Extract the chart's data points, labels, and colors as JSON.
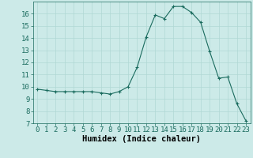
{
  "x": [
    0,
    1,
    2,
    3,
    4,
    5,
    6,
    7,
    8,
    9,
    10,
    11,
    12,
    13,
    14,
    15,
    16,
    17,
    18,
    19,
    20,
    21,
    22,
    23
  ],
  "y": [
    9.8,
    9.7,
    9.6,
    9.6,
    9.6,
    9.6,
    9.6,
    9.5,
    9.4,
    9.6,
    10.0,
    11.6,
    14.1,
    15.9,
    15.6,
    16.6,
    16.6,
    16.1,
    15.3,
    12.9,
    10.7,
    10.8,
    8.6,
    7.2
  ],
  "xlabel": "Humidex (Indice chaleur)",
  "ylim": [
    7,
    17
  ],
  "xlim": [
    -0.5,
    23.5
  ],
  "yticks": [
    7,
    8,
    9,
    10,
    11,
    12,
    13,
    14,
    15,
    16
  ],
  "xtick_labels": [
    "0",
    "1",
    "2",
    "3",
    "4",
    "5",
    "6",
    "7",
    "8",
    "9",
    "10",
    "11",
    "12",
    "13",
    "14",
    "15",
    "16",
    "17",
    "18",
    "19",
    "20",
    "21",
    "22",
    "23"
  ],
  "line_color": "#1a6b5e",
  "marker": "+",
  "bg_color": "#cceae8",
  "grid_color": "#b0d8d4",
  "axis_label_fontsize": 7.5,
  "tick_fontsize": 6.5
}
